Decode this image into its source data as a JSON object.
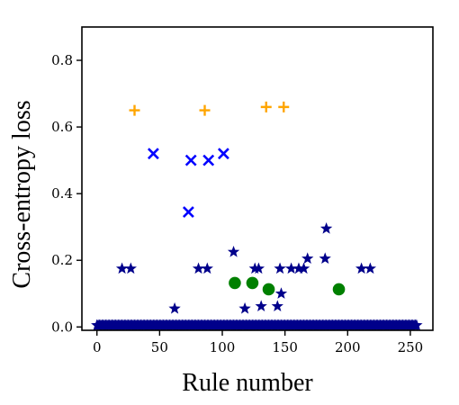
{
  "chart_data": {
    "type": "scatter",
    "title": "",
    "xlabel": "Rule number",
    "ylabel": "Cross-entropy loss",
    "xlim": [
      -12,
      268
    ],
    "ylim": [
      -0.01,
      0.9
    ],
    "xticks": [
      0,
      50,
      100,
      150,
      200,
      250
    ],
    "yticks": [
      0.0,
      0.2,
      0.4,
      0.6,
      0.8
    ],
    "xtick_labels": [
      "0",
      "50",
      "100",
      "150",
      "200",
      "250"
    ],
    "ytick_labels": [
      "0.0",
      "0.2",
      "0.4",
      "0.6",
      "0.8"
    ],
    "grid": false,
    "legend": "none",
    "series": [
      {
        "marker": "star",
        "color": "#00008b",
        "points": [
          [
            20,
            0.175
          ],
          [
            27,
            0.175
          ],
          [
            62,
            0.055
          ],
          [
            81,
            0.175
          ],
          [
            88,
            0.175
          ],
          [
            109,
            0.225
          ],
          [
            118,
            0.055
          ],
          [
            126,
            0.175
          ],
          [
            129,
            0.175
          ],
          [
            131,
            0.062
          ],
          [
            144,
            0.062
          ],
          [
            146,
            0.175
          ],
          [
            147,
            0.1
          ],
          [
            155,
            0.175
          ],
          [
            161,
            0.175
          ],
          [
            165,
            0.175
          ],
          [
            168,
            0.205
          ],
          [
            182,
            0.205
          ],
          [
            183,
            0.295
          ],
          [
            211,
            0.175
          ],
          [
            218,
            0.175
          ]
        ],
        "baseline_value": 0.005,
        "baseline_range": [
          0,
          255
        ]
      },
      {
        "marker": "x",
        "color": "#0000ff",
        "points": [
          [
            45,
            0.52
          ],
          [
            73,
            0.345
          ],
          [
            75,
            0.5
          ],
          [
            89,
            0.5
          ],
          [
            101,
            0.52
          ]
        ]
      },
      {
        "marker": "plus",
        "color": "#ffa500",
        "points": [
          [
            30,
            0.65
          ],
          [
            86,
            0.65
          ],
          [
            135,
            0.66
          ],
          [
            149,
            0.66
          ]
        ]
      },
      {
        "marker": "circle",
        "color": "#008000",
        "points": [
          [
            110,
            0.132
          ],
          [
            124,
            0.132
          ],
          [
            137,
            0.113
          ],
          [
            193,
            0.113
          ]
        ]
      }
    ]
  }
}
